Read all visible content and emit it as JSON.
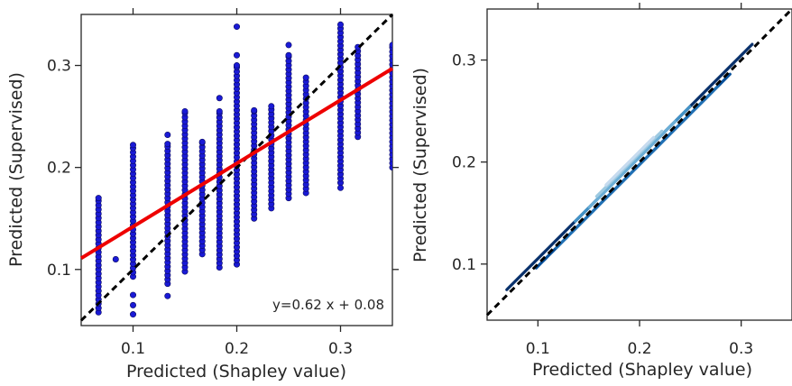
{
  "chart_data": [
    {
      "type": "scatter",
      "xlabel": "Predicted (Shapley value)",
      "ylabel": "Predicted (Supervised)",
      "xlim": [
        0.05,
        0.35
      ],
      "ylim": [
        0.045,
        0.35
      ],
      "xticks": [
        0.1,
        0.2,
        0.3
      ],
      "xtick_labels": [
        "0.1",
        "0.2",
        "0.3"
      ],
      "yticks": [
        0.1,
        0.2,
        0.3
      ],
      "ytick_labels": [
        "0.1",
        "0.2",
        "0.3"
      ],
      "point_color": "#1a1ad6",
      "columns": [
        {
          "x": 0.0667,
          "y_min": 0.058,
          "y_max": 0.17,
          "outliers": []
        },
        {
          "x": 0.0833,
          "y_min": 0.11,
          "y_max": 0.11,
          "outliers": []
        },
        {
          "x": 0.1,
          "y_min": 0.093,
          "y_max": 0.222,
          "outliers": [
            0.065,
            0.056,
            0.075
          ]
        },
        {
          "x": 0.1333,
          "y_min": 0.086,
          "y_max": 0.223,
          "outliers": [
            0.232,
            0.074
          ]
        },
        {
          "x": 0.15,
          "y_min": 0.098,
          "y_max": 0.255,
          "outliers": []
        },
        {
          "x": 0.1667,
          "y_min": 0.115,
          "y_max": 0.225,
          "outliers": []
        },
        {
          "x": 0.1833,
          "y_min": 0.102,
          "y_max": 0.255,
          "outliers": [
            0.268
          ]
        },
        {
          "x": 0.2,
          "y_min": 0.105,
          "y_max": 0.3,
          "outliers": [
            0.338,
            0.31
          ]
        },
        {
          "x": 0.2167,
          "y_min": 0.15,
          "y_max": 0.256,
          "outliers": []
        },
        {
          "x": 0.2333,
          "y_min": 0.16,
          "y_max": 0.26,
          "outliers": []
        },
        {
          "x": 0.25,
          "y_min": 0.17,
          "y_max": 0.31,
          "outliers": [
            0.32
          ]
        },
        {
          "x": 0.2667,
          "y_min": 0.175,
          "y_max": 0.288,
          "outliers": []
        },
        {
          "x": 0.3,
          "y_min": 0.185,
          "y_max": 0.34,
          "outliers": [
            0.18
          ]
        },
        {
          "x": 0.3167,
          "y_min": 0.23,
          "y_max": 0.318,
          "outliers": []
        },
        {
          "x": 0.35,
          "y_min": 0.2,
          "y_max": 0.32,
          "outliers": []
        }
      ],
      "regression": {
        "slope": 0.62,
        "intercept": 0.08,
        "color": "#ee0000"
      },
      "identity_line": {
        "style": "dashed",
        "color": "#000000"
      },
      "annotation": "y=0.62 x + 0.08"
    },
    {
      "type": "contour",
      "xlabel": "Predicted (Shapley value)",
      "ylabel": "Predicted (Supervised)",
      "xlim": [
        0.05,
        0.35
      ],
      "ylim": [
        0.045,
        0.35
      ],
      "xticks": [
        0.1,
        0.2,
        0.3
      ],
      "xtick_labels": [
        "0.1",
        "0.2",
        "0.3"
      ],
      "yticks": [
        0.1,
        0.2,
        0.3
      ],
      "ytick_labels": [
        "0.1",
        "0.2",
        "0.3"
      ],
      "colormap": "Blues",
      "levels": [
        {
          "level": 1,
          "color": "#08306b",
          "x_range": [
            0.085,
            0.31
          ],
          "y_range": [
            0.1,
            0.305
          ]
        },
        {
          "level": 2,
          "color": "#08519c",
          "x_range": [
            0.105,
            0.285
          ],
          "y_range": [
            0.115,
            0.27
          ]
        },
        {
          "level": 3,
          "color": "#2171b5",
          "x_range": [
            0.12,
            0.27
          ],
          "y_range": [
            0.125,
            0.26
          ]
        },
        {
          "level": 4,
          "color": "#4292c6",
          "x_range": [
            0.135,
            0.245
          ],
          "y_range": [
            0.145,
            0.245
          ]
        },
        {
          "level": 5,
          "color": "#6baed6",
          "x_range": [
            0.15,
            0.235
          ],
          "y_range": [
            0.16,
            0.235
          ]
        },
        {
          "level": 6,
          "color": "#9ecae1",
          "x_range": [
            0.158,
            0.225
          ],
          "y_range": [
            0.172,
            0.228
          ]
        },
        {
          "level": 7,
          "color": "#c6dbef",
          "x_range": [
            0.168,
            0.215
          ],
          "y_range": [
            0.182,
            0.222
          ]
        }
      ],
      "identity_line": {
        "style": "dashed",
        "color": "#000000"
      }
    }
  ]
}
